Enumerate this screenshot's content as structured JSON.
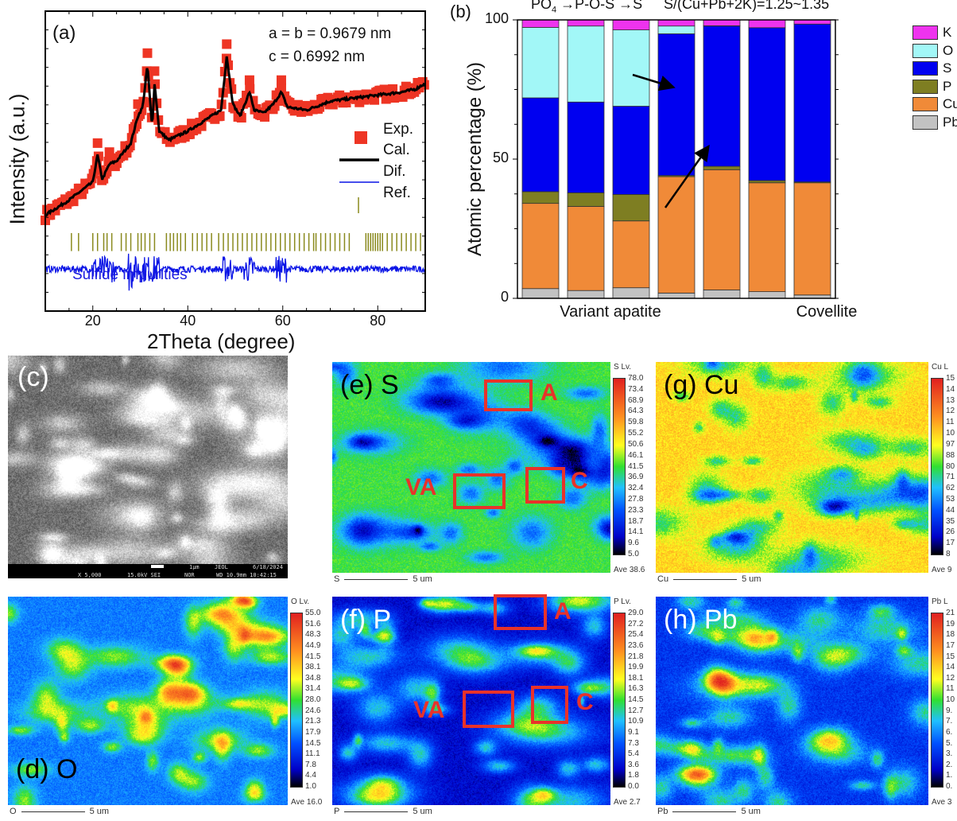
{
  "panel_a": {
    "label": "(a)",
    "lattice_ab": "a = b = 0.9679 nm",
    "lattice_c": "c = 0.6992 nm",
    "annotation": "Sulfide impurities",
    "legend": [
      "Exp.",
      "Cal.",
      "Dif.",
      "Ref."
    ]
  },
  "panel_b": {
    "label": "(b)",
    "header_left_pre": "PO",
    "header_left_sub": "4",
    "header_left_post": " →P-O-S →S",
    "header_right": "S/(Cu+Pb+2K)=1.25~1.35"
  },
  "chart_data": [
    {
      "type": "line",
      "panel": "a",
      "xlabel": "2Theta (degree)",
      "ylabel": "Intensity (a.u.)",
      "xlim": [
        10,
        90
      ],
      "xticks": [
        "20",
        "40",
        "60",
        "80"
      ],
      "y_ticks_labeled": false,
      "grid": false,
      "legend_placement": "right",
      "colors": {
        "Exp.": "#ee3524",
        "Cal.": "#000000",
        "Dif.": "#0a14e6",
        "Ref.": "#8a8a1e"
      },
      "series": [
        {
          "name": "Cal.",
          "x": [
            10,
            15,
            20,
            21,
            22,
            23.5,
            25,
            28,
            29.5,
            30.5,
            31.5,
            32.5,
            33,
            34,
            36,
            40,
            45,
            47,
            48.2,
            49.5,
            51,
            53,
            54,
            56,
            58,
            59.7,
            61,
            65,
            70,
            75,
            80,
            85,
            88,
            90
          ],
          "y": [
            32,
            37,
            43,
            52,
            44,
            49,
            50,
            56,
            65,
            68,
            82,
            61,
            76,
            60,
            57,
            60,
            65,
            67,
            85,
            69,
            65,
            73,
            67,
            66,
            69,
            73,
            68,
            67,
            70,
            71,
            72,
            73,
            74,
            76
          ]
        },
        {
          "name": "Exp.",
          "note_peaks": [
            21,
            23.5,
            29.5,
            31.5,
            33,
            48.2,
            53,
            59.7
          ]
        },
        {
          "name": "Dif.",
          "baseline": 14
        },
        {
          "name": "Ref.",
          "x": [
            15.5,
            17,
            20,
            21,
            22.3,
            23,
            24,
            26,
            27,
            28,
            29.5,
            30.2,
            31,
            32,
            33,
            35.5,
            36.3,
            37,
            37.8,
            38.5,
            39.5,
            41,
            42,
            43,
            44,
            45,
            46.5,
            47.5,
            48.5,
            49.5,
            50.5,
            51.5,
            52.5,
            53.5,
            54.5,
            55.5,
            56.5,
            57.5,
            58.5,
            59.5,
            60.5,
            61.5,
            62.5,
            63.5,
            64.5,
            65.5,
            66.5,
            67,
            68,
            69,
            70,
            71,
            72,
            73,
            74,
            77.5,
            78,
            78.5,
            79,
            79.5,
            80,
            80.5,
            81,
            82,
            83,
            84,
            85,
            86,
            87,
            88,
            89,
            90
          ]
        }
      ]
    },
    {
      "type": "bar",
      "stacked": true,
      "panel": "b",
      "ylabel": "Atomic percentage (%)",
      "ylim": [
        0,
        100
      ],
      "yticks": [
        "0",
        "50",
        "100"
      ],
      "group_labels": [
        "Variant apatite",
        "Covellite"
      ],
      "legend_placement": "right",
      "legend": [
        "K",
        "O",
        "S",
        "P",
        "Cu",
        "Pb"
      ],
      "colors": {
        "K": "#ee33ee",
        "O": "#a2f7f7",
        "S": "#0000f0",
        "P": "#7e7e22",
        "Cu": "#f08a38",
        "Pb": "#c2c2c2"
      },
      "series": [
        {
          "name": "Pb",
          "values": [
            3.5,
            2.8,
            3.8,
            1.9,
            3.0,
            2.4,
            1.2
          ]
        },
        {
          "name": "Cu",
          "values": [
            30.6,
            30.2,
            24.0,
            41.8,
            43.2,
            39.1,
            40.3
          ]
        },
        {
          "name": "P",
          "values": [
            4.2,
            4.9,
            9.5,
            0.4,
            1.2,
            0.8,
            0.3
          ]
        },
        {
          "name": "S",
          "values": [
            33.7,
            32.6,
            31.7,
            50.9,
            50.4,
            54.9,
            56.7
          ]
        },
        {
          "name": "O",
          "values": [
            25.3,
            27.3,
            27.4,
            2.8,
            0.1,
            0.0,
            0.0
          ]
        },
        {
          "name": "K",
          "values": [
            2.7,
            2.2,
            3.6,
            2.2,
            2.1,
            2.8,
            1.5
          ]
        }
      ]
    }
  ],
  "sem": {
    "label": "(c)",
    "info": {
      "mag": "X 5,000",
      "kv": "15.0kV SEI",
      "mode": "NOR",
      "scale": "1μm",
      "brand": "JEOL",
      "date": "6/18/2024",
      "wd": "WD 10.9mm 10:42:15"
    }
  },
  "maps": {
    "S": {
      "label": "(e) S",
      "head": "S Lv.",
      "ticks": [
        "78.0",
        "73.4",
        "68.9",
        "64.3",
        "59.8",
        "55.2",
        "50.6",
        "46.1",
        "41.5",
        "36.9",
        "32.4",
        "27.8",
        "23.3",
        "18.7",
        "14.1",
        "9.6",
        "5.0"
      ],
      "ave": "Ave 38.6",
      "scale_el": "S",
      "scale": "5 um",
      "boxes": {
        "A": "A",
        "VA": "VA",
        "C": "C"
      }
    },
    "Cu": {
      "label": "(g) Cu",
      "head": "Cu L",
      "ticks": [
        "15",
        "14",
        "13",
        "12",
        "11",
        "10",
        "97",
        "88",
        "80",
        "71",
        "62",
        "53",
        "44",
        "35",
        "26",
        "17",
        "8"
      ],
      "ave": "Ave 9",
      "scale_el": "Cu",
      "scale": "5 um"
    },
    "O": {
      "label": "(d) O",
      "head": "O Lv.",
      "ticks": [
        "55.0",
        "51.6",
        "48.3",
        "44.9",
        "41.5",
        "38.1",
        "34.8",
        "31.4",
        "28.0",
        "24.6",
        "21.3",
        "17.9",
        "14.5",
        "11.1",
        "7.8",
        "4.4",
        "1.0"
      ],
      "ave": "Ave 16.0",
      "scale_el": "O",
      "scale": "5 um"
    },
    "P": {
      "label": "(f) P",
      "head": "P Lv.",
      "ticks": [
        "29.0",
        "27.2",
        "25.4",
        "23.6",
        "21.8",
        "19.9",
        "18.1",
        "16.3",
        "14.5",
        "12.7",
        "10.9",
        "9.1",
        "7.3",
        "5.4",
        "3.6",
        "1.8",
        "0.0"
      ],
      "ave": "Ave 2.7",
      "scale_el": "P",
      "scale": "5 um",
      "boxes": {
        "A": "A",
        "VA": "VA",
        "C": "C"
      }
    },
    "Pb": {
      "label": "(h) Pb",
      "head": "Pb L",
      "ticks": [
        "21",
        "19",
        "18",
        "17",
        "15",
        "14",
        "12",
        "11",
        "10",
        "9.",
        "7.",
        "6.",
        "5.",
        "3.",
        "2.",
        "1.",
        "0."
      ],
      "ave": "Ave 3",
      "scale_el": "Pb",
      "scale": "5 um"
    }
  }
}
